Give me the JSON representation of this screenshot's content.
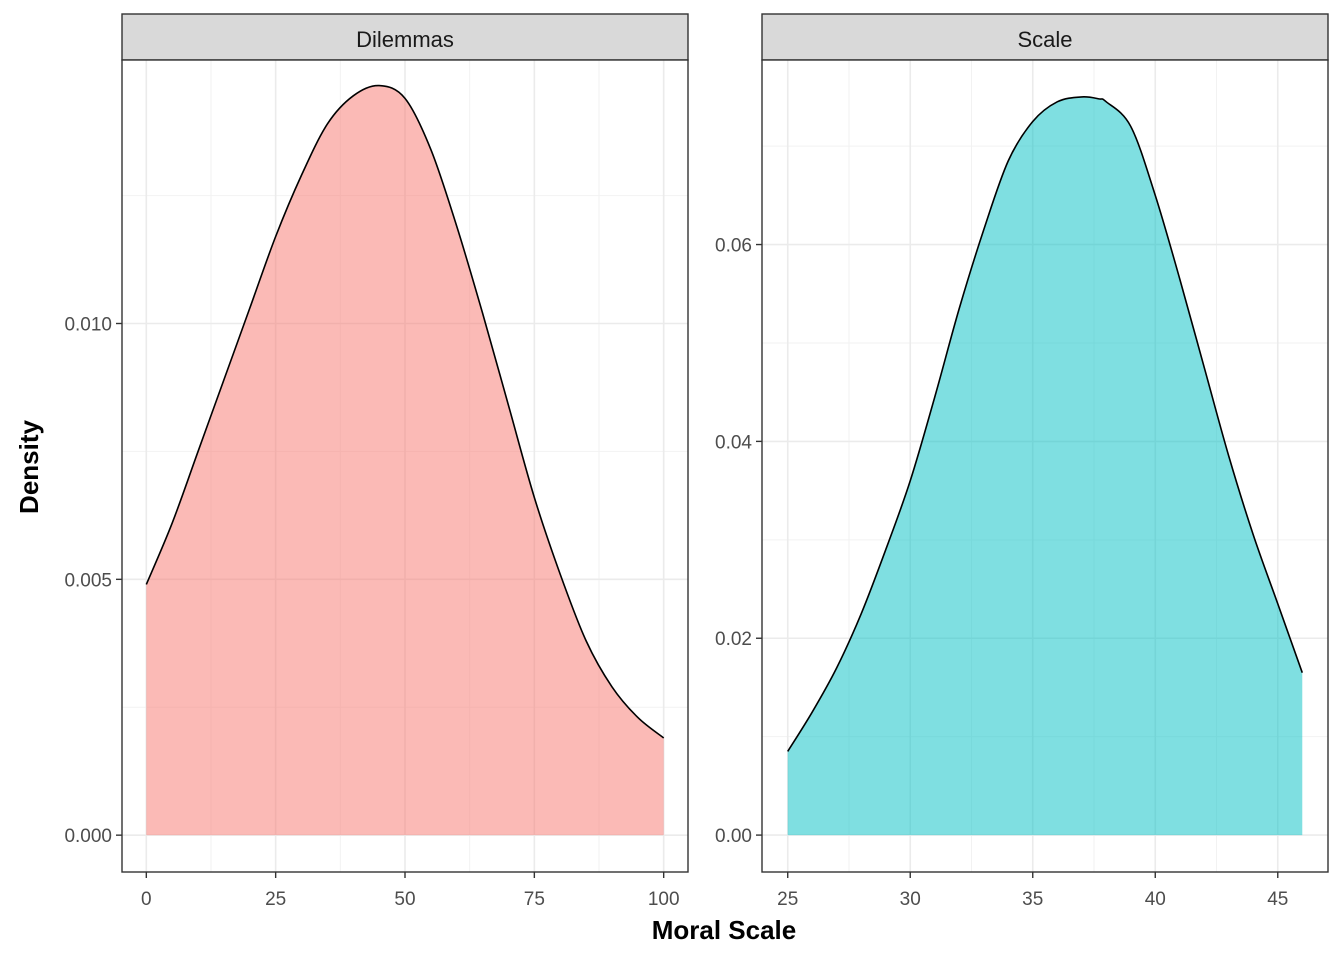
{
  "chart_data": {
    "type": "area",
    "xlabel": "Moral Scale",
    "ylabel": "Density",
    "grid": true,
    "panels": [
      {
        "name": "Dilemmas",
        "fill": "#F8766D",
        "xlim": [
          -4.7,
          104.7
        ],
        "ylim": [
          -0.00072,
          0.01515
        ],
        "xticks": [
          0,
          25,
          50,
          75,
          100
        ],
        "yticks": [
          0.0,
          0.005,
          0.01
        ],
        "ytick_labels": [
          "0.000",
          "0.005",
          "0.010"
        ],
        "x": [
          0,
          5,
          10,
          15,
          20,
          25,
          30,
          35,
          40,
          45,
          50,
          55,
          60,
          65,
          70,
          75,
          80,
          85,
          90,
          95,
          100
        ],
        "y": [
          0.0049,
          0.0061,
          0.0075,
          0.0089,
          0.0103,
          0.0117,
          0.0129,
          0.0139,
          0.01445,
          0.01465,
          0.0144,
          0.0134,
          0.0119,
          0.0102,
          0.0084,
          0.0066,
          0.0051,
          0.0038,
          0.0029,
          0.0023,
          0.0019
        ]
      },
      {
        "name": "Scale",
        "fill": "#00BFC4",
        "xlim": [
          23.95,
          47.05
        ],
        "ylim": [
          -0.00375,
          0.07875
        ],
        "xticks": [
          25,
          30,
          35,
          40,
          45
        ],
        "yticks": [
          0.0,
          0.02,
          0.04,
          0.06
        ],
        "ytick_labels": [
          "0.00",
          "0.02",
          "0.04",
          "0.06"
        ],
        "x": [
          25,
          26,
          27,
          28,
          29,
          30,
          31,
          32,
          33,
          34,
          35,
          36,
          37,
          37.7,
          38,
          39,
          40,
          41,
          42,
          43,
          44,
          45,
          46
        ],
        "y": [
          0.0085,
          0.0125,
          0.017,
          0.0225,
          0.029,
          0.036,
          0.0445,
          0.0535,
          0.0615,
          0.0685,
          0.0725,
          0.0745,
          0.075,
          0.0748,
          0.0745,
          0.072,
          0.065,
          0.0565,
          0.0475,
          0.0385,
          0.0305,
          0.0235,
          0.0165
        ]
      }
    ]
  }
}
